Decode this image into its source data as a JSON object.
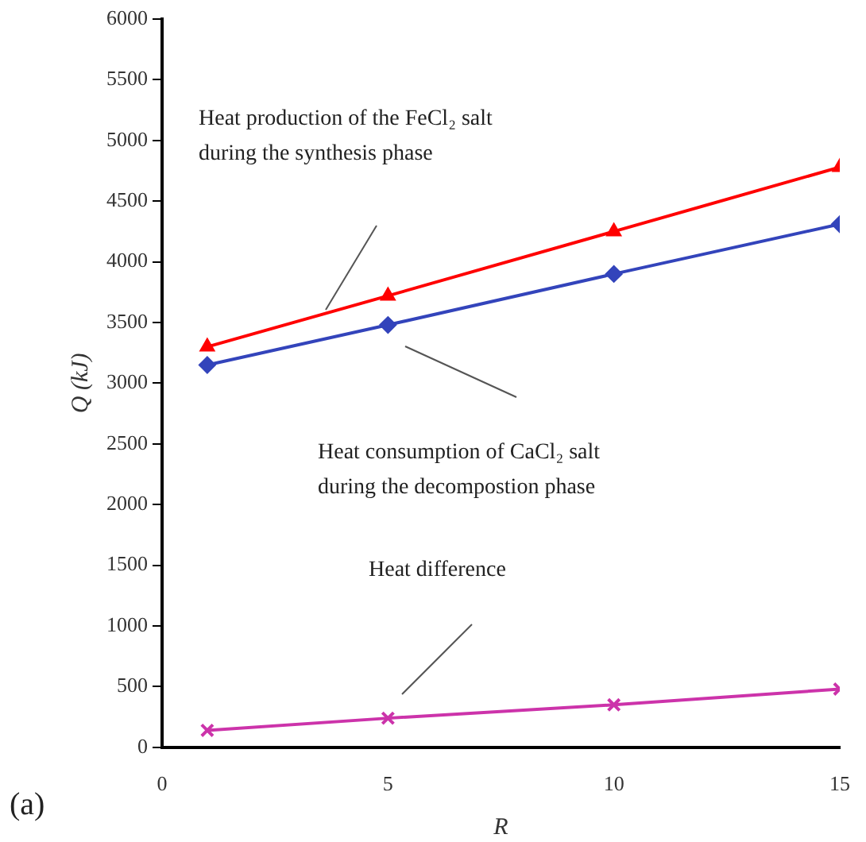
{
  "chart_data": {
    "type": "line",
    "xlabel": "R",
    "ylabel": "Q (kJ)",
    "x": [
      1,
      5,
      10,
      15
    ],
    "series": [
      {
        "color": "#ff0000",
        "marker": "triangle",
        "values": [
          3300,
          3720,
          4250,
          4780
        ]
      },
      {
        "color": "#3344bb",
        "marker": "diamond",
        "values": [
          3150,
          3480,
          3900,
          4310
        ]
      },
      {
        "color": "#cc33aa",
        "marker": "cross",
        "values": [
          140,
          240,
          350,
          480
        ]
      }
    ],
    "xlim": [
      0,
      15
    ],
    "xticks": [
      0,
      5,
      10,
      15
    ],
    "ylim": [
      0,
      6000
    ],
    "yticks": [
      0,
      500,
      1000,
      1500,
      2000,
      2500,
      3000,
      3500,
      4000,
      4500,
      5000,
      5500,
      6000
    ],
    "grid": false,
    "legend": false,
    "line_style": "solid",
    "annotations": [
      "Heat production of the FeCl₂ salt\nduring the synthesis phase",
      "Heat consumption of CaCl₂ salt\nduring the decompostion phase",
      "Heat difference",
      "(a)"
    ]
  }
}
